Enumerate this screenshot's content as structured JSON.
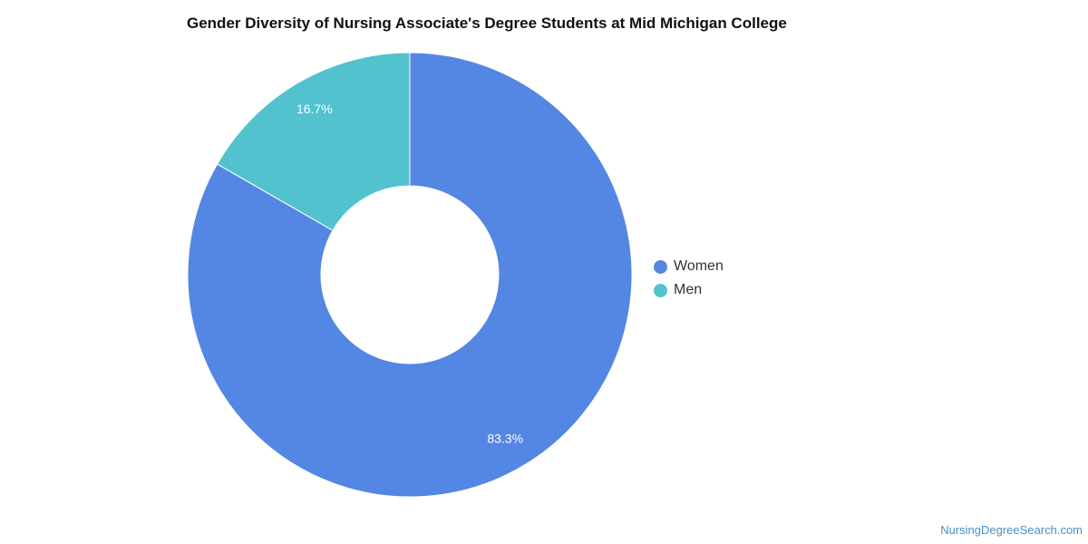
{
  "chart_data": {
    "type": "pie",
    "title": "Gender Diversity of Nursing Associate's Degree Students at Mid Michigan College",
    "categories": [
      "Women",
      "Men"
    ],
    "values": [
      83.3,
      16.7
    ],
    "value_labels": [
      "83.3%",
      "16.7%"
    ],
    "colors": [
      "#5486e3",
      "#52c2cf"
    ],
    "donut": true,
    "legend_placement": "right"
  },
  "footer": {
    "source": "NursingDegreeSearch.com"
  }
}
